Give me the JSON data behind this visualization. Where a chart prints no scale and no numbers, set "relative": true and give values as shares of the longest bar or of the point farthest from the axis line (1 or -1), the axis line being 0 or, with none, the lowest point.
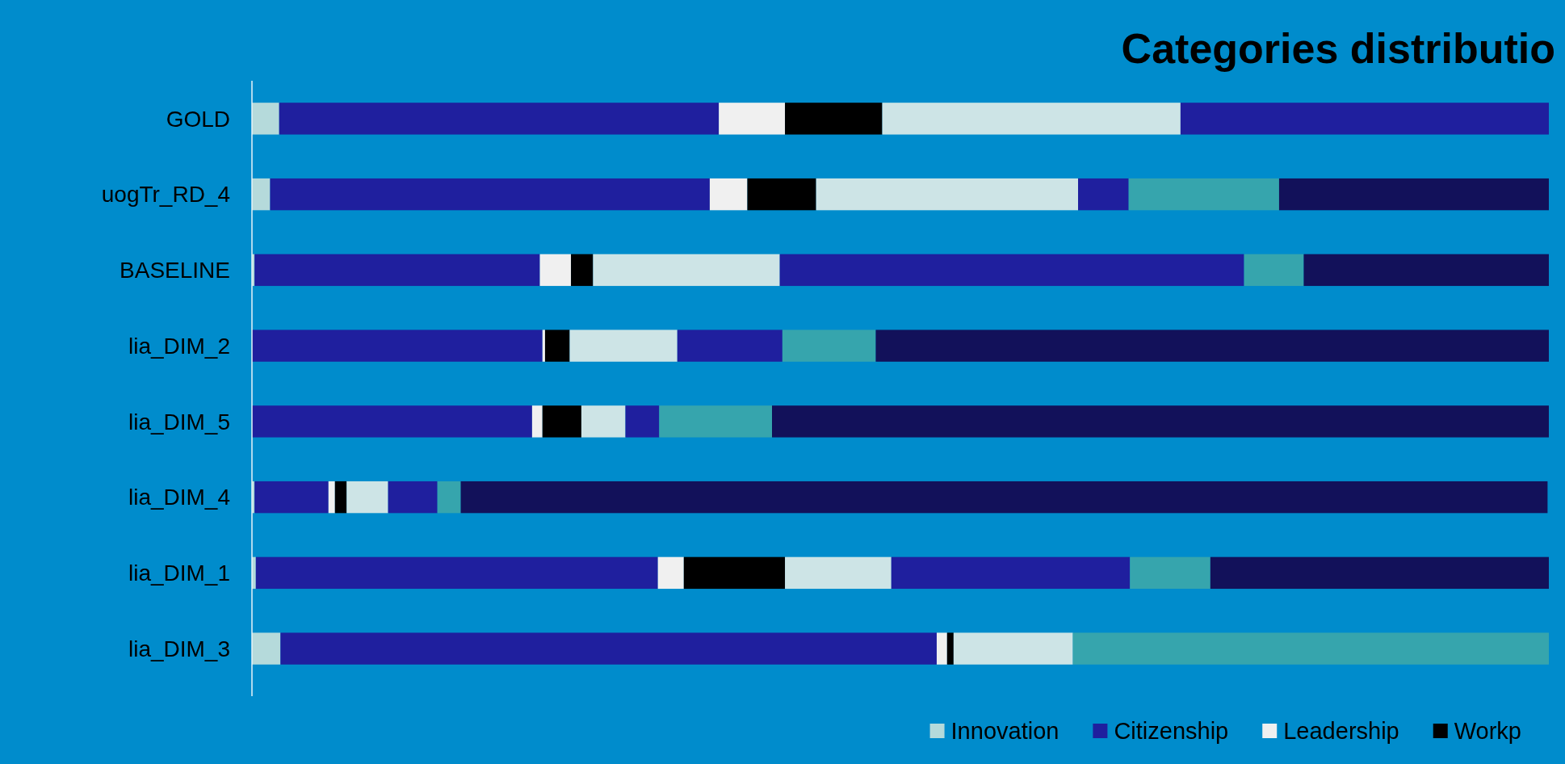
{
  "chart_data": {
    "type": "bar",
    "orientation": "horizontal",
    "stacked": true,
    "relative": true,
    "title": "Categories distributio",
    "legend": "bottom",
    "categories": [
      "GOLD",
      "uogTr_RD_4",
      "BASELINE",
      "lia_DIM_2",
      "lia_DIM_5",
      "lia_DIM_4",
      "lia_DIM_1",
      "lia_DIM_3"
    ],
    "series": [
      {
        "name": "Innovation",
        "color": "#b5dadb",
        "values": [
          0.021,
          0.014,
          0.002,
          null,
          null,
          0.002,
          0.003,
          0.022
        ]
      },
      {
        "name": "Citizenship",
        "color": "#1f1f9e",
        "values": [
          0.339,
          0.339,
          0.22,
          0.224,
          0.216,
          0.057,
          0.31,
          0.506
        ]
      },
      {
        "name": "Leadership",
        "color": "#f0f0f0",
        "values": [
          0.051,
          0.029,
          0.024,
          0.002,
          0.008,
          0.005,
          0.02,
          0.008
        ]
      },
      {
        "name": "Workp",
        "color": "#000000",
        "values": [
          0.075,
          0.053,
          0.017,
          0.019,
          0.03,
          0.009,
          0.078,
          0.005
        ]
      },
      {
        "color": "#cde4e6",
        "values": [
          0.23,
          0.202,
          0.144,
          0.083,
          0.034,
          0.032,
          0.082,
          0.092
        ]
      },
      {
        "color": "#1f1f9e",
        "values": [
          0.284,
          0.039,
          0.358,
          0.081,
          0.026,
          0.038,
          0.184,
          null
        ]
      },
      {
        "color": "#36a5ad",
        "values": [
          null,
          0.116,
          0.046,
          0.072,
          0.087,
          0.018,
          0.062,
          0.367
        ]
      },
      {
        "color": "#12115a",
        "values": [
          null,
          0.208,
          0.189,
          0.519,
          0.599,
          0.838,
          0.261,
          null
        ]
      }
    ]
  }
}
